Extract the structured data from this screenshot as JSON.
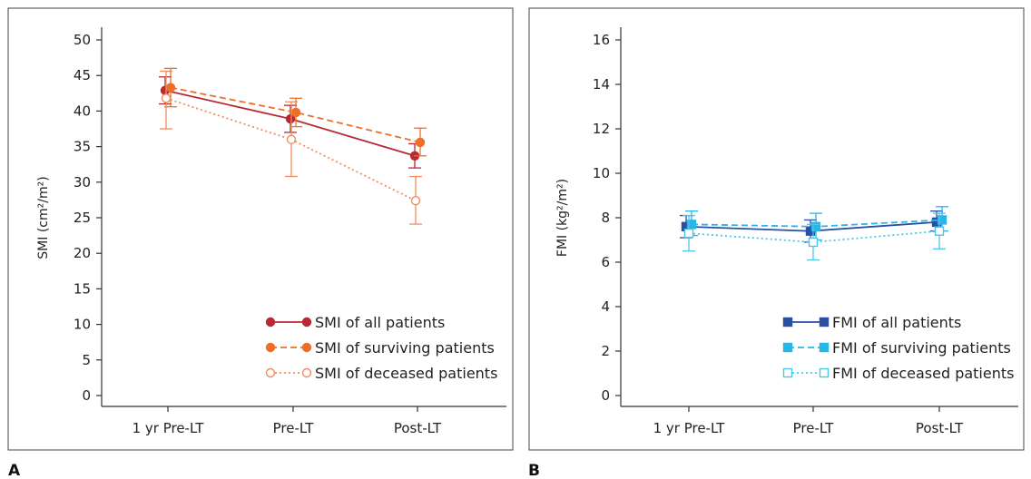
{
  "chart_data": [
    {
      "panel_label": "A",
      "type": "line",
      "x": [
        "1 yr Pre-LT",
        "Pre-LT",
        "Post-LT"
      ],
      "ylabel": "SMI (cm²/m²)",
      "ylim": [
        0,
        50
      ],
      "yticks": [
        0,
        5,
        10,
        15,
        20,
        25,
        30,
        35,
        40,
        45,
        50
      ],
      "legend_position": "bottom-right",
      "series": [
        {
          "name": "SMI of all patients",
          "color": "#b82933",
          "line_style": "solid",
          "marker": "filled-circle",
          "values": [
            42.9,
            38.9,
            33.7
          ],
          "error_low": [
            41.0,
            37.0,
            32.0
          ],
          "error_high": [
            44.8,
            40.8,
            35.4
          ]
        },
        {
          "name": "SMI of surviving patients",
          "color": "#ee6f28",
          "line_style": "dashed",
          "marker": "filled-circle",
          "values": [
            43.3,
            39.8,
            35.6
          ],
          "error_low": [
            40.6,
            37.8,
            33.7
          ],
          "error_high": [
            46.0,
            41.8,
            37.6
          ]
        },
        {
          "name": "SMI of deceased patients",
          "color": "#f08d5c",
          "line_style": "dotted",
          "marker": "open-circle",
          "values": [
            41.8,
            36.0,
            27.4
          ],
          "error_low": [
            37.5,
            30.8,
            24.1
          ],
          "error_high": [
            45.6,
            41.3,
            30.8
          ]
        }
      ]
    },
    {
      "panel_label": "B",
      "type": "line",
      "x": [
        "1 yr Pre-LT",
        "Pre-LT",
        "Post-LT"
      ],
      "ylabel": "FMI (kg²/m²)",
      "ylim": [
        0,
        16
      ],
      "yticks": [
        0,
        2,
        4,
        6,
        8,
        10,
        12,
        14,
        16
      ],
      "legend_position": "bottom-right",
      "series": [
        {
          "name": "FMI of all patients",
          "color": "#2a4fa4",
          "line_style": "solid",
          "marker": "filled-square",
          "values": [
            7.6,
            7.4,
            7.8
          ],
          "error_low": [
            7.1,
            6.9,
            7.4
          ],
          "error_high": [
            8.1,
            7.9,
            8.3
          ]
        },
        {
          "name": "FMI of surviving patients",
          "color": "#29b6e6",
          "line_style": "dashed",
          "marker": "filled-square",
          "values": [
            7.7,
            7.6,
            7.9
          ],
          "error_low": [
            7.2,
            7.0,
            7.4
          ],
          "error_high": [
            8.3,
            8.2,
            8.5
          ]
        },
        {
          "name": "FMI of deceased patients",
          "color": "#4cc5ea",
          "line_style": "dotted",
          "marker": "open-square",
          "values": [
            7.3,
            6.9,
            7.4
          ],
          "error_low": [
            6.5,
            6.1,
            6.6
          ],
          "error_high": [
            8.1,
            7.7,
            8.2
          ]
        }
      ]
    }
  ]
}
